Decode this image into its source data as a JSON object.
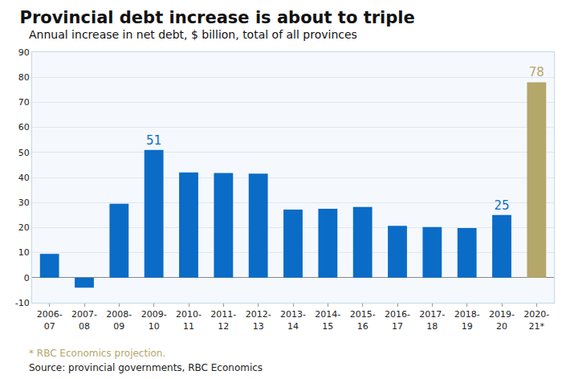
{
  "chart_data": {
    "type": "bar",
    "title": "Provincial debt increase is about to triple",
    "subtitle": "Annual increase in net debt, $ billion, total of all provinces",
    "categories": [
      "2006-07",
      "2007-08",
      "2008-09",
      "2009-10",
      "2010-11",
      "2011-12",
      "2012-13",
      "2013-14",
      "2014-15",
      "2015-16",
      "2016-17",
      "2017-18",
      "2018-19",
      "2019-20",
      "2020-21*"
    ],
    "values": [
      9.5,
      -4,
      29.5,
      51,
      42,
      41.8,
      41.5,
      27.2,
      27.5,
      28.2,
      20.7,
      20.2,
      19.8,
      25,
      78
    ],
    "value_labels": [
      null,
      null,
      null,
      "51",
      null,
      null,
      null,
      null,
      null,
      null,
      null,
      null,
      null,
      "25",
      "78"
    ],
    "colors": [
      "#0a6cc6",
      "#0a6cc6",
      "#0a6cc6",
      "#0a6cc6",
      "#0a6cc6",
      "#0a6cc6",
      "#0a6cc6",
      "#0a6cc6",
      "#0a6cc6",
      "#0a6cc6",
      "#0a6cc6",
      "#0a6cc6",
      "#0a6cc6",
      "#0a6cc6",
      "#b5a66a"
    ],
    "ylim": [
      -10,
      90
    ],
    "yticks": [
      -10,
      0,
      10,
      20,
      30,
      40,
      50,
      60,
      70,
      80,
      90
    ],
    "grid": true,
    "annotations": [
      {
        "text": "* RBC Economics projection.",
        "color": "#b5a66a"
      },
      {
        "text": "Source: provincial governments, RBC Economics",
        "color": "#222222"
      }
    ]
  }
}
